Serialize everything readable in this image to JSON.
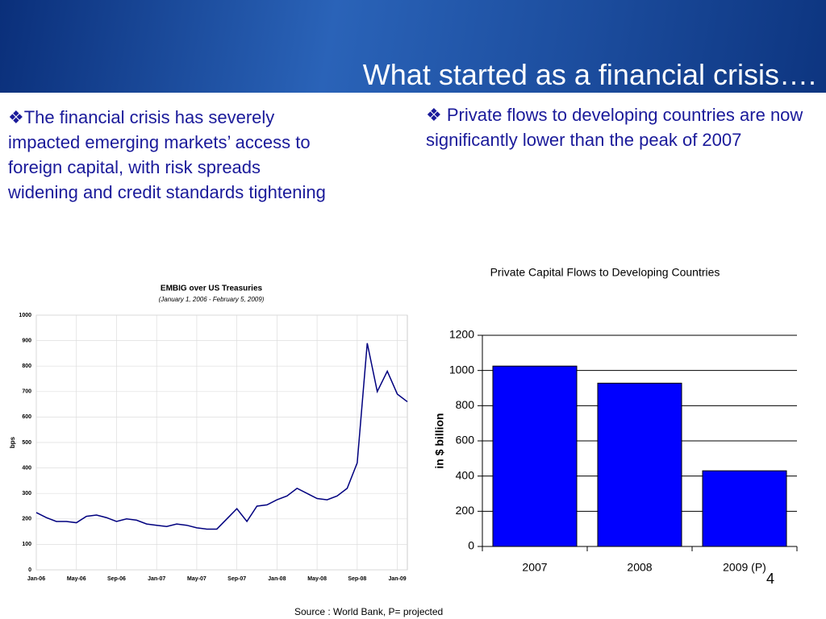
{
  "slide": {
    "title": "What started as a financial crisis….",
    "left_bullet": "❖The financial crisis has severely impacted emerging markets’ access to foreign capital, with risk spreads  widening and credit standards tightening",
    "right_bullet": "❖ Private flows to developing countries are  now significantly lower than the peak of 2007",
    "source": "Source : World Bank, P= projected",
    "page_number": "4"
  },
  "chart_data": [
    {
      "type": "line",
      "title": "EMBIG over US Treasuries",
      "subtitle": "(January 1, 2006 - February 5, 2009)",
      "y_label": "bps",
      "categories": [
        "Jan-06",
        null,
        null,
        null,
        "May-06",
        null,
        null,
        null,
        "Sep-06",
        null,
        null,
        null,
        "Jan-07",
        null,
        null,
        null,
        "May-07",
        null,
        null,
        null,
        "Sep-07",
        null,
        null,
        null,
        "Jan-08",
        null,
        null,
        null,
        "May-08",
        null,
        null,
        null,
        "Sep-08",
        null,
        null,
        null,
        "Jan-09",
        null
      ],
      "values": [
        225,
        205,
        190,
        190,
        185,
        210,
        215,
        205,
        190,
        200,
        195,
        180,
        175,
        170,
        180,
        175,
        165,
        160,
        160,
        200,
        240,
        190,
        250,
        255,
        275,
        290,
        320,
        300,
        280,
        275,
        290,
        320,
        420,
        890,
        700,
        780,
        690,
        660
      ],
      "color": "#00007f",
      "ylim": [
        0,
        1000
      ],
      "yticks": [
        0,
        100,
        200,
        300,
        400,
        500,
        600,
        700,
        800,
        900,
        1000
      ],
      "grid": true
    },
    {
      "type": "bar",
      "title": "Private Capital Flows to Developing Countries",
      "y_label": "in $ billion",
      "categories": [
        "2007",
        "2008",
        "2009 (P)"
      ],
      "values": [
        1025,
        928,
        430
      ],
      "color": "#0000ff",
      "ylim": [
        0,
        1200
      ],
      "yticks": [
        0,
        200,
        400,
        600,
        800,
        1000,
        1200
      ],
      "grid": true
    }
  ]
}
